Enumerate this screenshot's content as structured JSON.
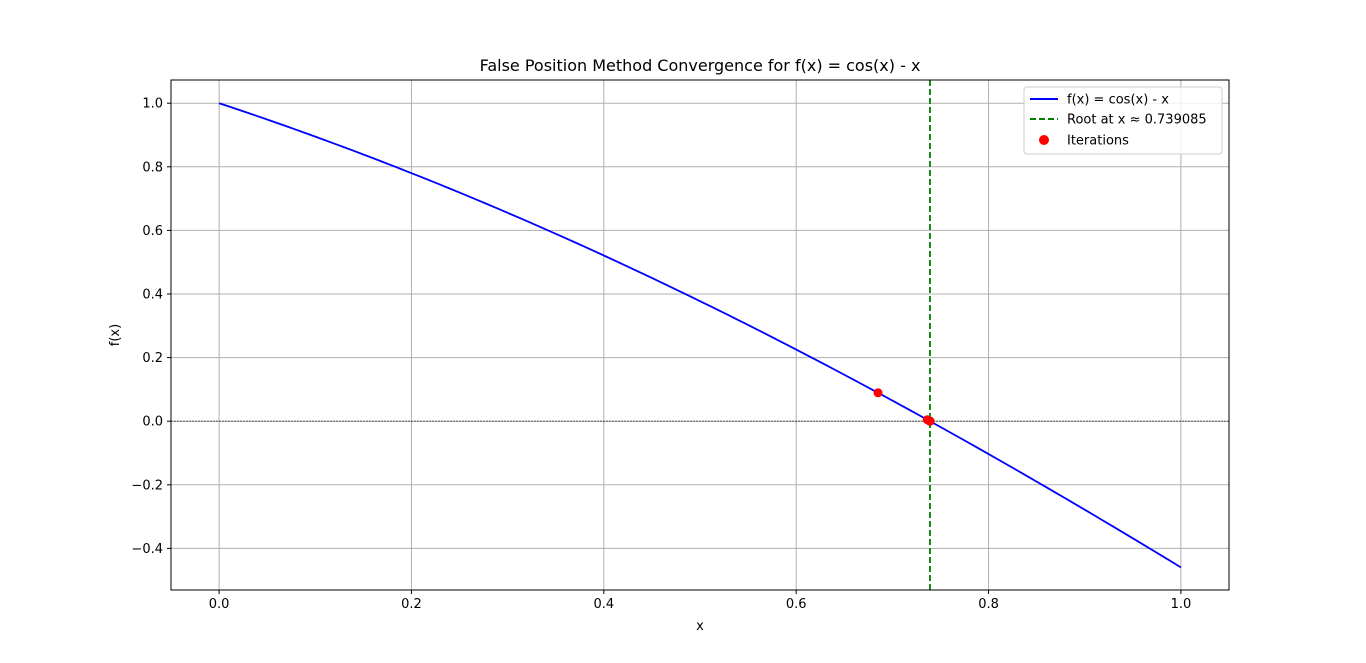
{
  "chart_data": {
    "type": "line",
    "title": "False Position Method Convergence for f(x) = cos(x) - x",
    "xlabel": "x",
    "ylabel": "f(x)",
    "xlim": [
      -0.05,
      1.05
    ],
    "ylim": [
      -0.5309,
      1.073
    ],
    "x_ticks": [
      0.0,
      0.2,
      0.4,
      0.6,
      0.8,
      1.0
    ],
    "x_tick_labels": [
      "0.0",
      "0.2",
      "0.4",
      "0.6",
      "0.8",
      "1.0"
    ],
    "y_ticks": [
      -0.4,
      -0.2,
      0.0,
      0.2,
      0.4,
      0.6,
      0.8,
      1.0
    ],
    "y_tick_labels": [
      "−0.4",
      "−0.2",
      "0.0",
      "0.2",
      "0.4",
      "0.6",
      "0.8",
      "1.0"
    ],
    "grid": true,
    "legend_position": "top-right",
    "function_series": {
      "name": "f(x) = cos(x) - x",
      "color": "#0000ff",
      "x_range": [
        0,
        1
      ],
      "sample_count": 101
    },
    "root_line": {
      "name": "Root at x ≈ 0.739085",
      "x": 0.739085,
      "color": "#008000",
      "style": "dashed"
    },
    "iterations": {
      "name": "Iterations",
      "color": "#ff0000",
      "x": [
        0.685073,
        0.736299,
        0.738945,
        0.739078,
        0.739085,
        0.739085
      ],
      "y": [
        0.089299,
        0.00466,
        0.000235,
        1.2e-05,
        1e-06,
        0.0
      ]
    },
    "zero_line": {
      "y": 0.0,
      "color": "#000000",
      "style": "dashed"
    }
  }
}
